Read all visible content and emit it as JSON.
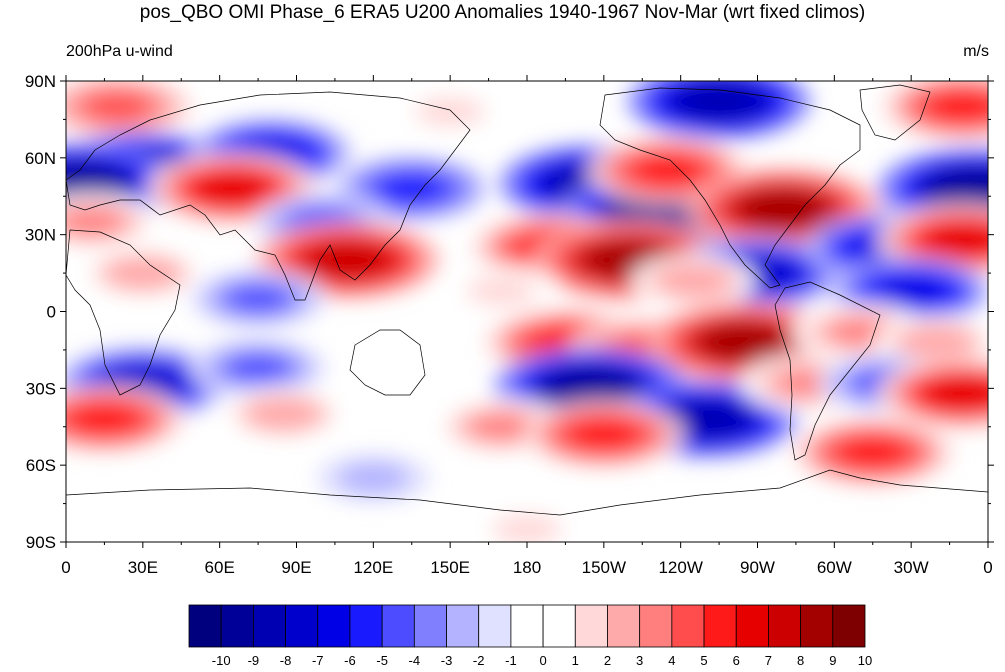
{
  "title": "pos_QBO OMI Phase_6 ERA5 U200 Anomalies 1940-1967 Nov-Mar (wrt fixed climos)",
  "left_string": "200hPa u-wind",
  "right_string": "m/s",
  "axes": {
    "lat_ticks": [
      "90N",
      "60N",
      "30N",
      "0",
      "30S",
      "60S",
      "90S"
    ],
    "lon_ticks": [
      "0",
      "30E",
      "60E",
      "90E",
      "120E",
      "150E",
      "180",
      "150W",
      "120W",
      "90W",
      "60W",
      "30W",
      "0"
    ]
  },
  "colorbar": {
    "labels": [
      "-10",
      "-9",
      "-8",
      "-7",
      "-6",
      "-5",
      "-4",
      "-3",
      "-2",
      "-1",
      "0",
      "1",
      "2",
      "3",
      "4",
      "5",
      "6",
      "7",
      "8",
      "9",
      "10"
    ],
    "colors": [
      "#00007f",
      "#000099",
      "#0000b3",
      "#0000cc",
      "#0000e6",
      "#1a1aff",
      "#4d4dff",
      "#8080ff",
      "#b3b3ff",
      "#e0e0ff",
      "#ffffff",
      "#ffffff",
      "#ffd9d9",
      "#ffaaaa",
      "#ff7f7f",
      "#ff4d4d",
      "#ff1a1a",
      "#e60000",
      "#cc0000",
      "#a30000",
      "#7f0000"
    ]
  },
  "anomaly_features": [
    {
      "lon": 20,
      "lat": 80,
      "value": 5
    },
    {
      "lon": 150,
      "lat": 78,
      "value": 2
    },
    {
      "lon": 255,
      "lat": 82,
      "value": -8
    },
    {
      "lon": 350,
      "lat": 80,
      "value": 6
    },
    {
      "lon": 30,
      "lat": 55,
      "value": -8
    },
    {
      "lon": 80,
      "lat": 62,
      "value": -6
    },
    {
      "lon": 5,
      "lat": 50,
      "value": -9
    },
    {
      "lon": 65,
      "lat": 48,
      "value": 7
    },
    {
      "lon": 135,
      "lat": 48,
      "value": -5
    },
    {
      "lon": 205,
      "lat": 50,
      "value": -8
    },
    {
      "lon": 230,
      "lat": 38,
      "value": -9
    },
    {
      "lon": 235,
      "lat": 55,
      "value": 6
    },
    {
      "lon": 280,
      "lat": 40,
      "value": 9
    },
    {
      "lon": 355,
      "lat": 48,
      "value": -9
    },
    {
      "lon": 10,
      "lat": 35,
      "value": 4
    },
    {
      "lon": 100,
      "lat": 35,
      "value": -4
    },
    {
      "lon": 110,
      "lat": 20,
      "value": 8
    },
    {
      "lon": 190,
      "lat": 25,
      "value": 6
    },
    {
      "lon": 220,
      "lat": 20,
      "value": 9
    },
    {
      "lon": 270,
      "lat": 15,
      "value": -7
    },
    {
      "lon": 320,
      "lat": 25,
      "value": -6
    },
    {
      "lon": 350,
      "lat": 28,
      "value": 7
    },
    {
      "lon": 30,
      "lat": 15,
      "value": 3
    },
    {
      "lon": 75,
      "lat": 5,
      "value": -4
    },
    {
      "lon": 170,
      "lat": 8,
      "value": 2
    },
    {
      "lon": 245,
      "lat": 12,
      "value": 3
    },
    {
      "lon": 330,
      "lat": 8,
      "value": -6
    },
    {
      "lon": 195,
      "lat": -12,
      "value": 6
    },
    {
      "lon": 225,
      "lat": -15,
      "value": 5
    },
    {
      "lon": 265,
      "lat": -12,
      "value": 9
    },
    {
      "lon": 310,
      "lat": -8,
      "value": 4
    },
    {
      "lon": 340,
      "lat": -12,
      "value": 3
    },
    {
      "lon": 30,
      "lat": -28,
      "value": -7
    },
    {
      "lon": 75,
      "lat": -22,
      "value": -4
    },
    {
      "lon": 205,
      "lat": -30,
      "value": -9
    },
    {
      "lon": 250,
      "lat": -42,
      "value": -8
    },
    {
      "lon": 290,
      "lat": -28,
      "value": 4
    },
    {
      "lon": 320,
      "lat": -28,
      "value": -4
    },
    {
      "lon": 350,
      "lat": -32,
      "value": 7
    },
    {
      "lon": 15,
      "lat": -42,
      "value": 6
    },
    {
      "lon": 85,
      "lat": -40,
      "value": 3
    },
    {
      "lon": 170,
      "lat": -45,
      "value": 4
    },
    {
      "lon": 210,
      "lat": -48,
      "value": 6
    },
    {
      "lon": 315,
      "lat": -55,
      "value": 6
    },
    {
      "lon": 120,
      "lat": -65,
      "value": -2
    },
    {
      "lon": 180,
      "lat": -85,
      "value": 2
    }
  ]
}
